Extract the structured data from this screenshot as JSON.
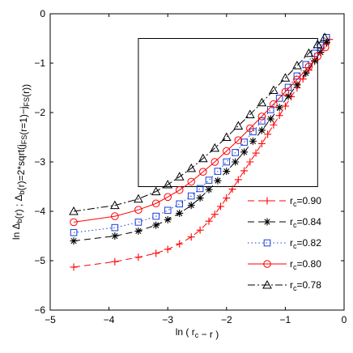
{
  "chart_data": {
    "type": "line",
    "xlabel": "ln ( r_c − r )",
    "ylabel": "ln Δ_b(r) ; Δ_b(r)=2*sqrt(j_FS(r=1)−j_FS(r))",
    "xlim": [
      -5,
      0
    ],
    "ylim": [
      -6,
      0
    ],
    "xticks": [
      -5,
      -4,
      -3,
      -2,
      -1,
      0
    ],
    "yticks": [
      -6,
      -5,
      -4,
      -3,
      -2,
      -1,
      0
    ],
    "xtick_labels": [
      "−5",
      "−4",
      "−3",
      "−2",
      "−1",
      "0"
    ],
    "ytick_labels": [
      "−6",
      "−5",
      "−4",
      "−3",
      "−2",
      "−1",
      "0"
    ],
    "grid": false,
    "legend_position": "lower-right",
    "inset_box": {
      "x": [
        -3.5,
        -0.45
      ],
      "y": [
        -3.5,
        -0.5
      ]
    },
    "series": [
      {
        "name": "r_c=0.90",
        "legend_label": "r",
        "legend_sub": "c",
        "legend_value": "=0.90",
        "color": "#ff0000",
        "marker": "plus",
        "dash": "8,5",
        "x": [
          -4.6,
          -3.9,
          -3.5,
          -3.2,
          -3.0,
          -2.8,
          -2.6,
          -2.45,
          -2.3,
          -2.2,
          -2.1,
          -2.0,
          -1.9,
          -1.8,
          -1.7,
          -1.6,
          -1.5,
          -1.4,
          -1.3,
          -1.2,
          -1.1,
          -1.0,
          -0.9,
          -0.8,
          -0.7,
          -0.6,
          -0.5,
          -0.4,
          -0.3,
          -0.25
        ],
        "y": [
          -5.13,
          -5.02,
          -4.93,
          -4.85,
          -4.77,
          -4.66,
          -4.52,
          -4.38,
          -4.2,
          -4.06,
          -3.9,
          -3.73,
          -3.55,
          -3.36,
          -3.18,
          -3.0,
          -2.82,
          -2.63,
          -2.44,
          -2.25,
          -2.06,
          -1.87,
          -1.68,
          -1.5,
          -1.32,
          -1.14,
          -0.96,
          -0.78,
          -0.6,
          -0.52
        ]
      },
      {
        "name": "r_c=0.84",
        "legend_label": "r",
        "legend_sub": "c",
        "legend_value": "=0.84",
        "color": "#000000",
        "marker": "asterisk",
        "dash": "8,5",
        "x": [
          -4.6,
          -3.9,
          -3.5,
          -3.2,
          -3.0,
          -2.8,
          -2.6,
          -2.45,
          -2.3,
          -2.15,
          -2.0,
          -1.85,
          -1.7,
          -1.55,
          -1.4,
          -1.25,
          -1.1,
          -0.95,
          -0.8,
          -0.65,
          -0.5,
          -0.4,
          -0.3
        ],
        "y": [
          -4.6,
          -4.5,
          -4.4,
          -4.28,
          -4.17,
          -4.04,
          -3.88,
          -3.73,
          -3.56,
          -3.38,
          -3.19,
          -3.0,
          -2.8,
          -2.58,
          -2.36,
          -2.13,
          -1.9,
          -1.67,
          -1.44,
          -1.2,
          -0.95,
          -0.78,
          -0.58
        ]
      },
      {
        "name": "r_c=0.82",
        "legend_label": "r",
        "legend_sub": "c",
        "legend_value": "=0.82",
        "color": "#1a3fd6",
        "marker": "square",
        "dash": "1.5,3",
        "x": [
          -4.6,
          -3.9,
          -3.5,
          -3.2,
          -3.0,
          -2.8,
          -2.6,
          -2.45,
          -2.3,
          -2.15,
          -2.0,
          -1.85,
          -1.7,
          -1.55,
          -1.4,
          -1.25,
          -1.1,
          -0.95,
          -0.8,
          -0.65,
          -0.5,
          -0.4,
          -0.3
        ],
        "y": [
          -4.43,
          -4.33,
          -4.22,
          -4.1,
          -3.98,
          -3.85,
          -3.69,
          -3.54,
          -3.37,
          -3.19,
          -3.0,
          -2.81,
          -2.6,
          -2.39,
          -2.17,
          -1.94,
          -1.71,
          -1.49,
          -1.26,
          -1.03,
          -0.8,
          -0.64,
          -0.48
        ]
      },
      {
        "name": "r_c=0.80",
        "legend_label": "r",
        "legend_sub": "c",
        "legend_value": "=0.80",
        "color": "#ff0000",
        "marker": "circle",
        "dash": "",
        "x": [
          -4.6,
          -3.9,
          -3.5,
          -3.2,
          -3.0,
          -2.8,
          -2.6,
          -2.4,
          -2.2,
          -2.0,
          -1.8,
          -1.6,
          -1.4,
          -1.2,
          -1.0,
          -0.8,
          -0.6,
          -0.45,
          -0.32
        ],
        "y": [
          -4.22,
          -4.1,
          -3.97,
          -3.84,
          -3.71,
          -3.57,
          -3.4,
          -3.2,
          -3.0,
          -2.78,
          -2.56,
          -2.32,
          -2.08,
          -1.83,
          -1.58,
          -1.33,
          -1.07,
          -0.86,
          -0.68
        ]
      },
      {
        "name": "r_c=0.78",
        "legend_label": "r",
        "legend_sub": "c",
        "legend_value": "=0.78",
        "color": "#000000",
        "marker": "triangle",
        "dash": "9,3,2,3",
        "x": [
          -4.6,
          -3.9,
          -3.5,
          -3.2,
          -3.0,
          -2.8,
          -2.6,
          -2.4,
          -2.2,
          -2.0,
          -1.8,
          -1.6,
          -1.4,
          -1.2,
          -1.0,
          -0.8,
          -0.6,
          -0.45,
          -0.33
        ],
        "y": [
          -4.0,
          -3.88,
          -3.75,
          -3.6,
          -3.46,
          -3.3,
          -3.13,
          -2.93,
          -2.72,
          -2.5,
          -2.27,
          -2.04,
          -1.8,
          -1.55,
          -1.3,
          -1.05,
          -0.8,
          -0.62,
          -0.48
        ]
      }
    ]
  }
}
